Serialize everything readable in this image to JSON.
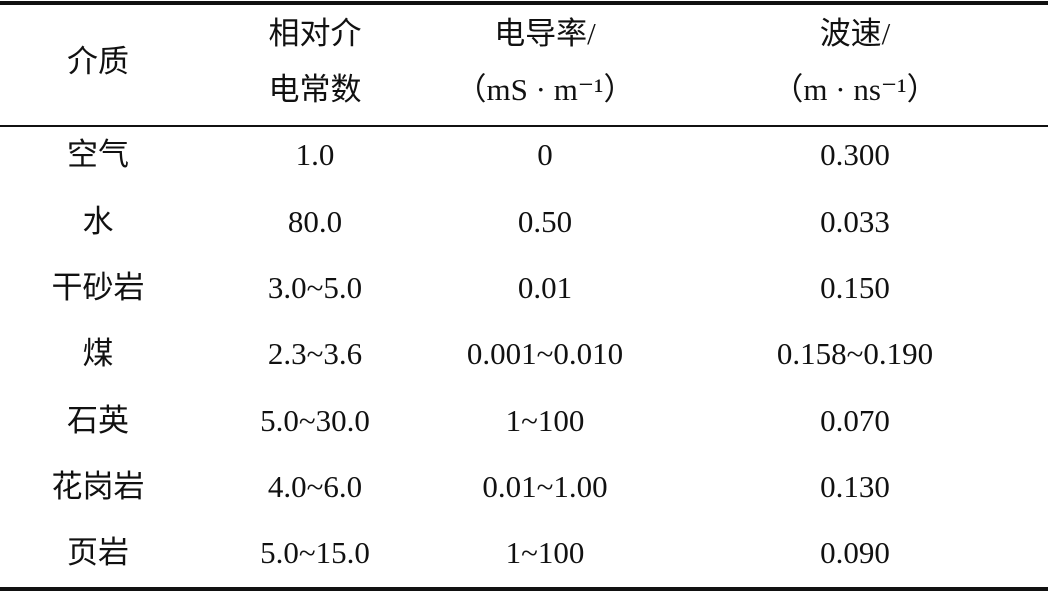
{
  "table": {
    "header": [
      [
        "介质"
      ],
      [
        "相对介",
        "电常数"
      ],
      [
        "电导率/",
        "（mS · m⁻¹）"
      ],
      [
        "波速/",
        "（m · ns⁻¹）"
      ]
    ],
    "rows": [
      [
        "空气",
        "1.0",
        "0",
        "0.300"
      ],
      [
        "水",
        "80.0",
        "0.50",
        "0.033"
      ],
      [
        "干砂岩",
        "3.0~5.0",
        "0.01",
        "0.150"
      ],
      [
        "煤",
        "2.3~3.6",
        "0.001~0.010",
        "0.158~0.190"
      ],
      [
        "石英",
        "5.0~30.0",
        "1~100",
        "0.070"
      ],
      [
        "花岗岩",
        "4.0~6.0",
        "0.01~1.00",
        "0.130"
      ],
      [
        "页岩",
        "5.0~15.0",
        "1~100",
        "0.090"
      ]
    ]
  }
}
